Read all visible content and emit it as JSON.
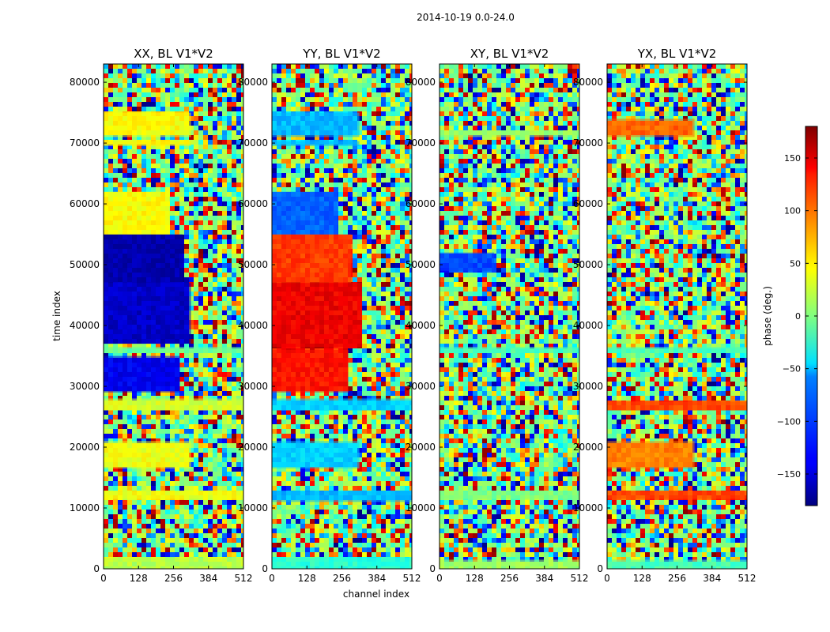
{
  "chart_data": {
    "type": "heatmap",
    "suptitle": "2014-10-19 0.0-24.0",
    "xlabel": "channel index",
    "ylabel": "time index",
    "xlim": [
      0,
      512
    ],
    "ylim": [
      0,
      83000
    ],
    "xticks": [
      0,
      128,
      256,
      384,
      512
    ],
    "yticks": [
      0,
      10000,
      20000,
      30000,
      40000,
      50000,
      60000,
      70000,
      80000
    ],
    "colormap": "jet",
    "colorbar": {
      "label": "phase (deg.)",
      "range": [
        -180,
        180
      ],
      "ticks": [
        150,
        100,
        50,
        0,
        -50,
        -100,
        -150
      ],
      "tick_labels": [
        "150",
        "100",
        "50",
        "0",
        "−50",
        "−100",
        "−150"
      ]
    },
    "panels": [
      {
        "title": "XX, BL V1*V2",
        "bands": [
          {
            "t0": 0,
            "t1": 1800,
            "phase": 20,
            "channel_end": 512
          },
          {
            "t0": 11500,
            "t1": 12800,
            "phase": 40,
            "channel_end": 512
          },
          {
            "t0": 16500,
            "t1": 21000,
            "phase": 40,
            "channel_end": 320
          },
          {
            "t0": 26000,
            "t1": 28000,
            "phase": 30,
            "channel_end": 512
          },
          {
            "t0": 29000,
            "t1": 35000,
            "phase": -140,
            "channel_end": 280
          },
          {
            "t0": 35500,
            "t1": 36500,
            "phase": -10,
            "channel_end": 512
          },
          {
            "t0": 37000,
            "t1": 47000,
            "phase": -155,
            "channel_end": 320
          },
          {
            "t0": 47000,
            "t1": 55000,
            "phase": -165,
            "channel_end": 290
          },
          {
            "t0": 55000,
            "t1": 62000,
            "phase": 45,
            "channel_end": 240
          },
          {
            "t0": 69500,
            "t1": 70300,
            "phase": 50,
            "channel_end": 320
          },
          {
            "t0": 71000,
            "t1": 75000,
            "phase": 45,
            "channel_end": 320
          }
        ]
      },
      {
        "title": "YY, BL V1*V2",
        "bands": [
          {
            "t0": 0,
            "t1": 1800,
            "phase": -30,
            "channel_end": 512
          },
          {
            "t0": 11000,
            "t1": 12800,
            "phase": -70,
            "channel_end": 512
          },
          {
            "t0": 16500,
            "t1": 21000,
            "phase": -60,
            "channel_end": 320
          },
          {
            "t0": 26000,
            "t1": 28000,
            "phase": -60,
            "channel_end": 512
          },
          {
            "t0": 29000,
            "t1": 36000,
            "phase": 130,
            "channel_end": 280
          },
          {
            "t0": 36500,
            "t1": 47000,
            "phase": 140,
            "channel_end": 330
          },
          {
            "t0": 47000,
            "t1": 55000,
            "phase": 115,
            "channel_end": 290
          },
          {
            "t0": 55000,
            "t1": 62000,
            "phase": -100,
            "channel_end": 240
          },
          {
            "t0": 69500,
            "t1": 70300,
            "phase": -70,
            "channel_end": 320
          },
          {
            "t0": 71000,
            "t1": 75000,
            "phase": -70,
            "channel_end": 320
          }
        ]
      },
      {
        "title": "XY, BL V1*V2",
        "bands": [
          {
            "t0": 0,
            "t1": 1500,
            "phase": 10,
            "channel_end": 512
          },
          {
            "t0": 11500,
            "t1": 12800,
            "phase": 0,
            "channel_end": 512
          },
          {
            "t0": 35500,
            "t1": 36500,
            "phase": -20,
            "channel_end": 512
          },
          {
            "t0": 49000,
            "t1": 52000,
            "phase": -110,
            "channel_end": 200
          },
          {
            "t0": 71000,
            "t1": 72000,
            "phase": 10,
            "channel_end": 512
          }
        ]
      },
      {
        "title": "YX, BL V1*V2",
        "bands": [
          {
            "t0": 0,
            "t1": 1500,
            "phase": -20,
            "channel_end": 512
          },
          {
            "t0": 11500,
            "t1": 12800,
            "phase": 110,
            "channel_end": 512
          },
          {
            "t0": 16500,
            "t1": 21000,
            "phase": 90,
            "channel_end": 320
          },
          {
            "t0": 26000,
            "t1": 27500,
            "phase": 110,
            "channel_end": 512
          },
          {
            "t0": 35500,
            "t1": 36500,
            "phase": -20,
            "channel_end": 512
          },
          {
            "t0": 71000,
            "t1": 74000,
            "phase": 100,
            "channel_end": 320
          }
        ]
      }
    ]
  }
}
